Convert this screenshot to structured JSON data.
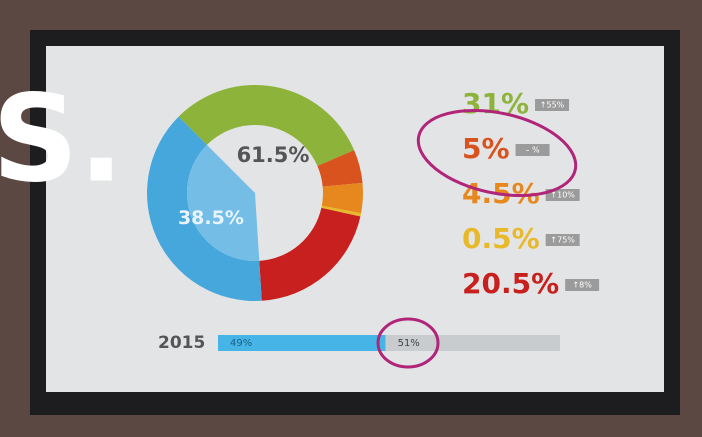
{
  "chart_data": {
    "type": "donut",
    "values": [
      31,
      5,
      4.5,
      0.5,
      20.5,
      38.5
    ],
    "value_labels": [
      "31%",
      "5%",
      "4.5%",
      "0.5%",
      "20.5%",
      "38.5%"
    ],
    "colors": [
      "#8db33a",
      "#d9531e",
      "#e7881e",
      "#e8b92a",
      "#c8201e",
      "#46a7dc"
    ],
    "changes": [
      "↑55%",
      "– %",
      "↑10%",
      "↑75%",
      "↑8%"
    ],
    "center_label": "61.5%",
    "bar": {
      "label": "2015",
      "values": [
        49,
        51
      ],
      "value_labels": [
        "49%",
        "51%"
      ],
      "colors": [
        "#46b4e6",
        "#c9cccf"
      ]
    },
    "overlay_text": "S."
  }
}
